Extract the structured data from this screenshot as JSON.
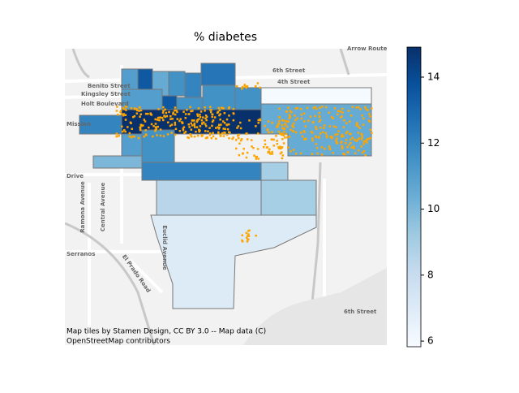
{
  "title": "% diabetes",
  "colorbar": {
    "clim": [
      5.83,
      14.91
    ],
    "ticks": [
      6,
      8,
      10,
      12,
      14
    ],
    "colormap": "Blues"
  },
  "region_values": [
    11,
    13.5,
    10.5,
    11.5,
    12,
    12.5,
    11.5,
    11,
    13.5,
    11.5,
    14.9,
    12,
    11,
    11.5,
    11.5,
    5.9,
    10.5,
    10,
    12,
    9,
    8.5,
    9,
    7
  ],
  "point_color": "#ffa500",
  "attribution": [
    "Map tiles by Stamen Design, CC BY 3.0 -- Map data (C)",
    "OpenStreetMap contributors"
  ],
  "street_labels": [
    "6th Street",
    "4th Street",
    "Benito Street",
    "Kingsley Street",
    "Holt Boulevard",
    "Mission",
    "Arrow Route",
    "Drive",
    "Ramona Avenue",
    "Central Avenue",
    "Euclid Avenue",
    "El Prado Road",
    "Serranos",
    "6th Street"
  ]
}
